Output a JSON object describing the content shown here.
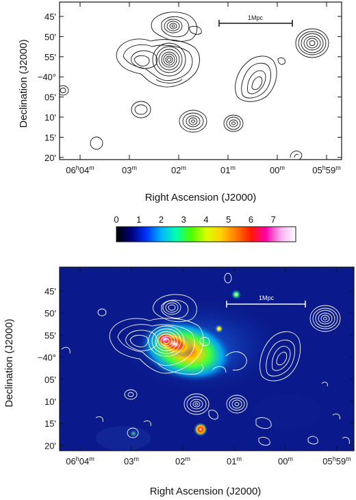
{
  "top_panel": {
    "scale_bar_label": "1Mpc",
    "xlabel": "Right Ascension (J2000)",
    "ylabel": "Declination (J2000)",
    "ra_ticks": [
      {
        "h": "06",
        "hu": "h",
        "m": "04",
        "mu": "m"
      },
      {
        "m": "03",
        "mu": "m"
      },
      {
        "m": "02",
        "mu": "m"
      },
      {
        "m": "01",
        "mu": "m"
      },
      {
        "m": "00",
        "mu": "m"
      },
      {
        "h": "05",
        "hu": "h",
        "m": "59",
        "mu": "m"
      }
    ],
    "dec_ticks": [
      "45'",
      "50'",
      "55'",
      "−40°",
      "05'",
      "10'",
      "15'",
      "20'"
    ]
  },
  "colorbar": {
    "tick_labels": [
      "0",
      "1",
      "2",
      "3",
      "4",
      "5",
      "6",
      "7"
    ],
    "colors": [
      "#000000",
      "#00007a",
      "#0033ff",
      "#00b4ff",
      "#00ffb0",
      "#4cff00",
      "#d8ff00",
      "#ffd000",
      "#ff7a00",
      "#ff1a00",
      "#ff00aa",
      "#ffb0f0",
      "#ffffff"
    ]
  },
  "bottom_panel": {
    "scale_bar_label": "1Mpc",
    "xlabel": "Right Ascension (J2000)",
    "ylabel": "Declination (J2000)",
    "ra_ticks": [
      {
        "h": "06",
        "hu": "h",
        "m": "04",
        "mu": "m"
      },
      {
        "m": "03",
        "mu": "m"
      },
      {
        "m": "02",
        "mu": "m"
      },
      {
        "m": "01",
        "mu": "m"
      },
      {
        "m": "00",
        "mu": "m"
      },
      {
        "h": "05",
        "hu": "h",
        "m": "59",
        "mu": "m"
      }
    ],
    "dec_ticks": [
      "45'",
      "50'",
      "55'",
      "−40°",
      "05'",
      "10'",
      "15'",
      "20'"
    ],
    "background_color": "#0a1a8c",
    "contour_color": "#ffffff"
  }
}
